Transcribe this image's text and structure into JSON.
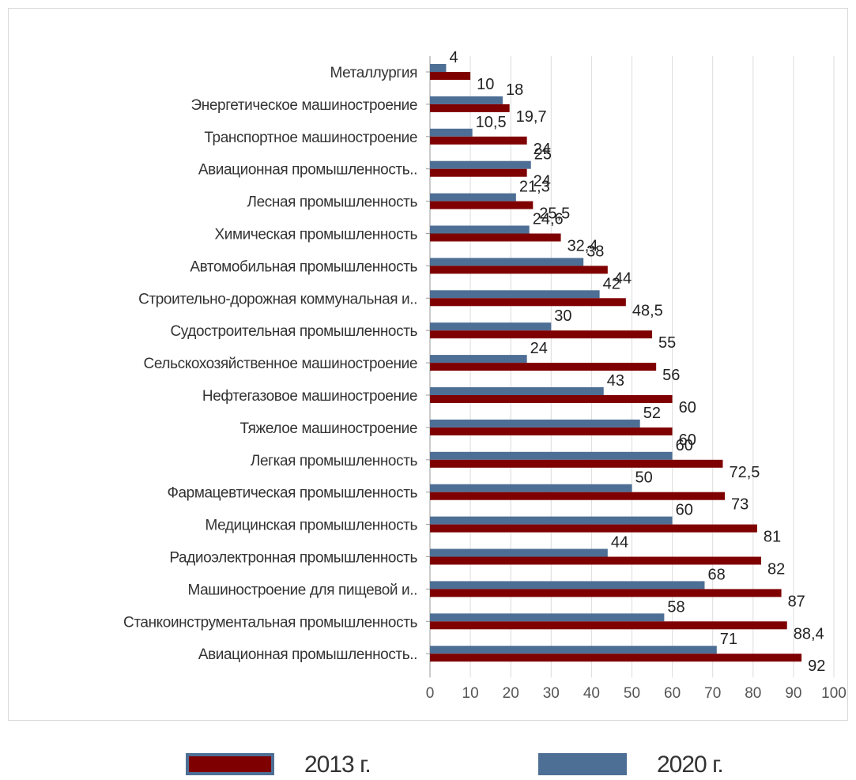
{
  "chart_data": {
    "type": "bar",
    "orientation": "horizontal",
    "categories": [
      "Металлургия",
      "Энергетическое машиностроение",
      "Транспортное машиностроение",
      "Авиационная промышленность..",
      "Лесная промышленность",
      "Химическая промышленность",
      "Автомобильная промышленность",
      "Строительно-дорожная коммунальная и..",
      "Судостроительная промышленность",
      "Сельскохозяйственное машиностроение",
      "Нефтегазовое машиностроение",
      "Тяжелое машиностроение",
      "Легкая промышленность",
      "Фармацевтическая промышленность",
      "Медицинская промышленность",
      "Радиоэлектронная промышленность",
      "Машиностроение для пищевой и..",
      "Станкоинструментальная промышленность",
      "Авиационная промышленность.."
    ],
    "series": [
      {
        "name": "2020 г.",
        "color": "#4e6f95",
        "values": [
          4,
          18,
          10.5,
          25,
          21.3,
          24.6,
          38,
          42,
          30,
          24,
          43,
          52,
          60,
          50,
          60,
          44,
          68,
          58,
          71
        ],
        "labels": [
          "4",
          "18",
          "10,5",
          "25",
          "21,3",
          "24,6",
          "38",
          "42",
          "30",
          "24",
          "43",
          "52",
          "60",
          "50",
          "60",
          "44",
          "68",
          "58",
          "71"
        ]
      },
      {
        "name": "2013 г.",
        "color": "#7f0000",
        "values": [
          10,
          19.7,
          24,
          24,
          25.5,
          32.4,
          44,
          48.5,
          55,
          56,
          60,
          60,
          72.5,
          73,
          81,
          82,
          87,
          88.4,
          92
        ],
        "labels": [
          "10",
          "19,7",
          "24",
          "24",
          "25,5",
          "32,4",
          "44",
          "48,5",
          "55",
          "56",
          "60",
          "60",
          "72,5",
          "73",
          "81",
          "82",
          "87",
          "88,4",
          "92"
        ]
      }
    ],
    "xlim": [
      0,
      100
    ],
    "xticks": [
      "0",
      "10",
      "20",
      "30",
      "40",
      "50",
      "60",
      "70",
      "80",
      "90",
      "100"
    ],
    "grid": true,
    "legend_position": "bottom",
    "title": "",
    "xlabel": "",
    "ylabel": ""
  },
  "legend": [
    {
      "label": "2013 г.",
      "color": "#7f0000",
      "border": "#4e6f95"
    },
    {
      "label": "2020 г.",
      "color": "#4e6f95",
      "border": "#4e6f95"
    }
  ]
}
